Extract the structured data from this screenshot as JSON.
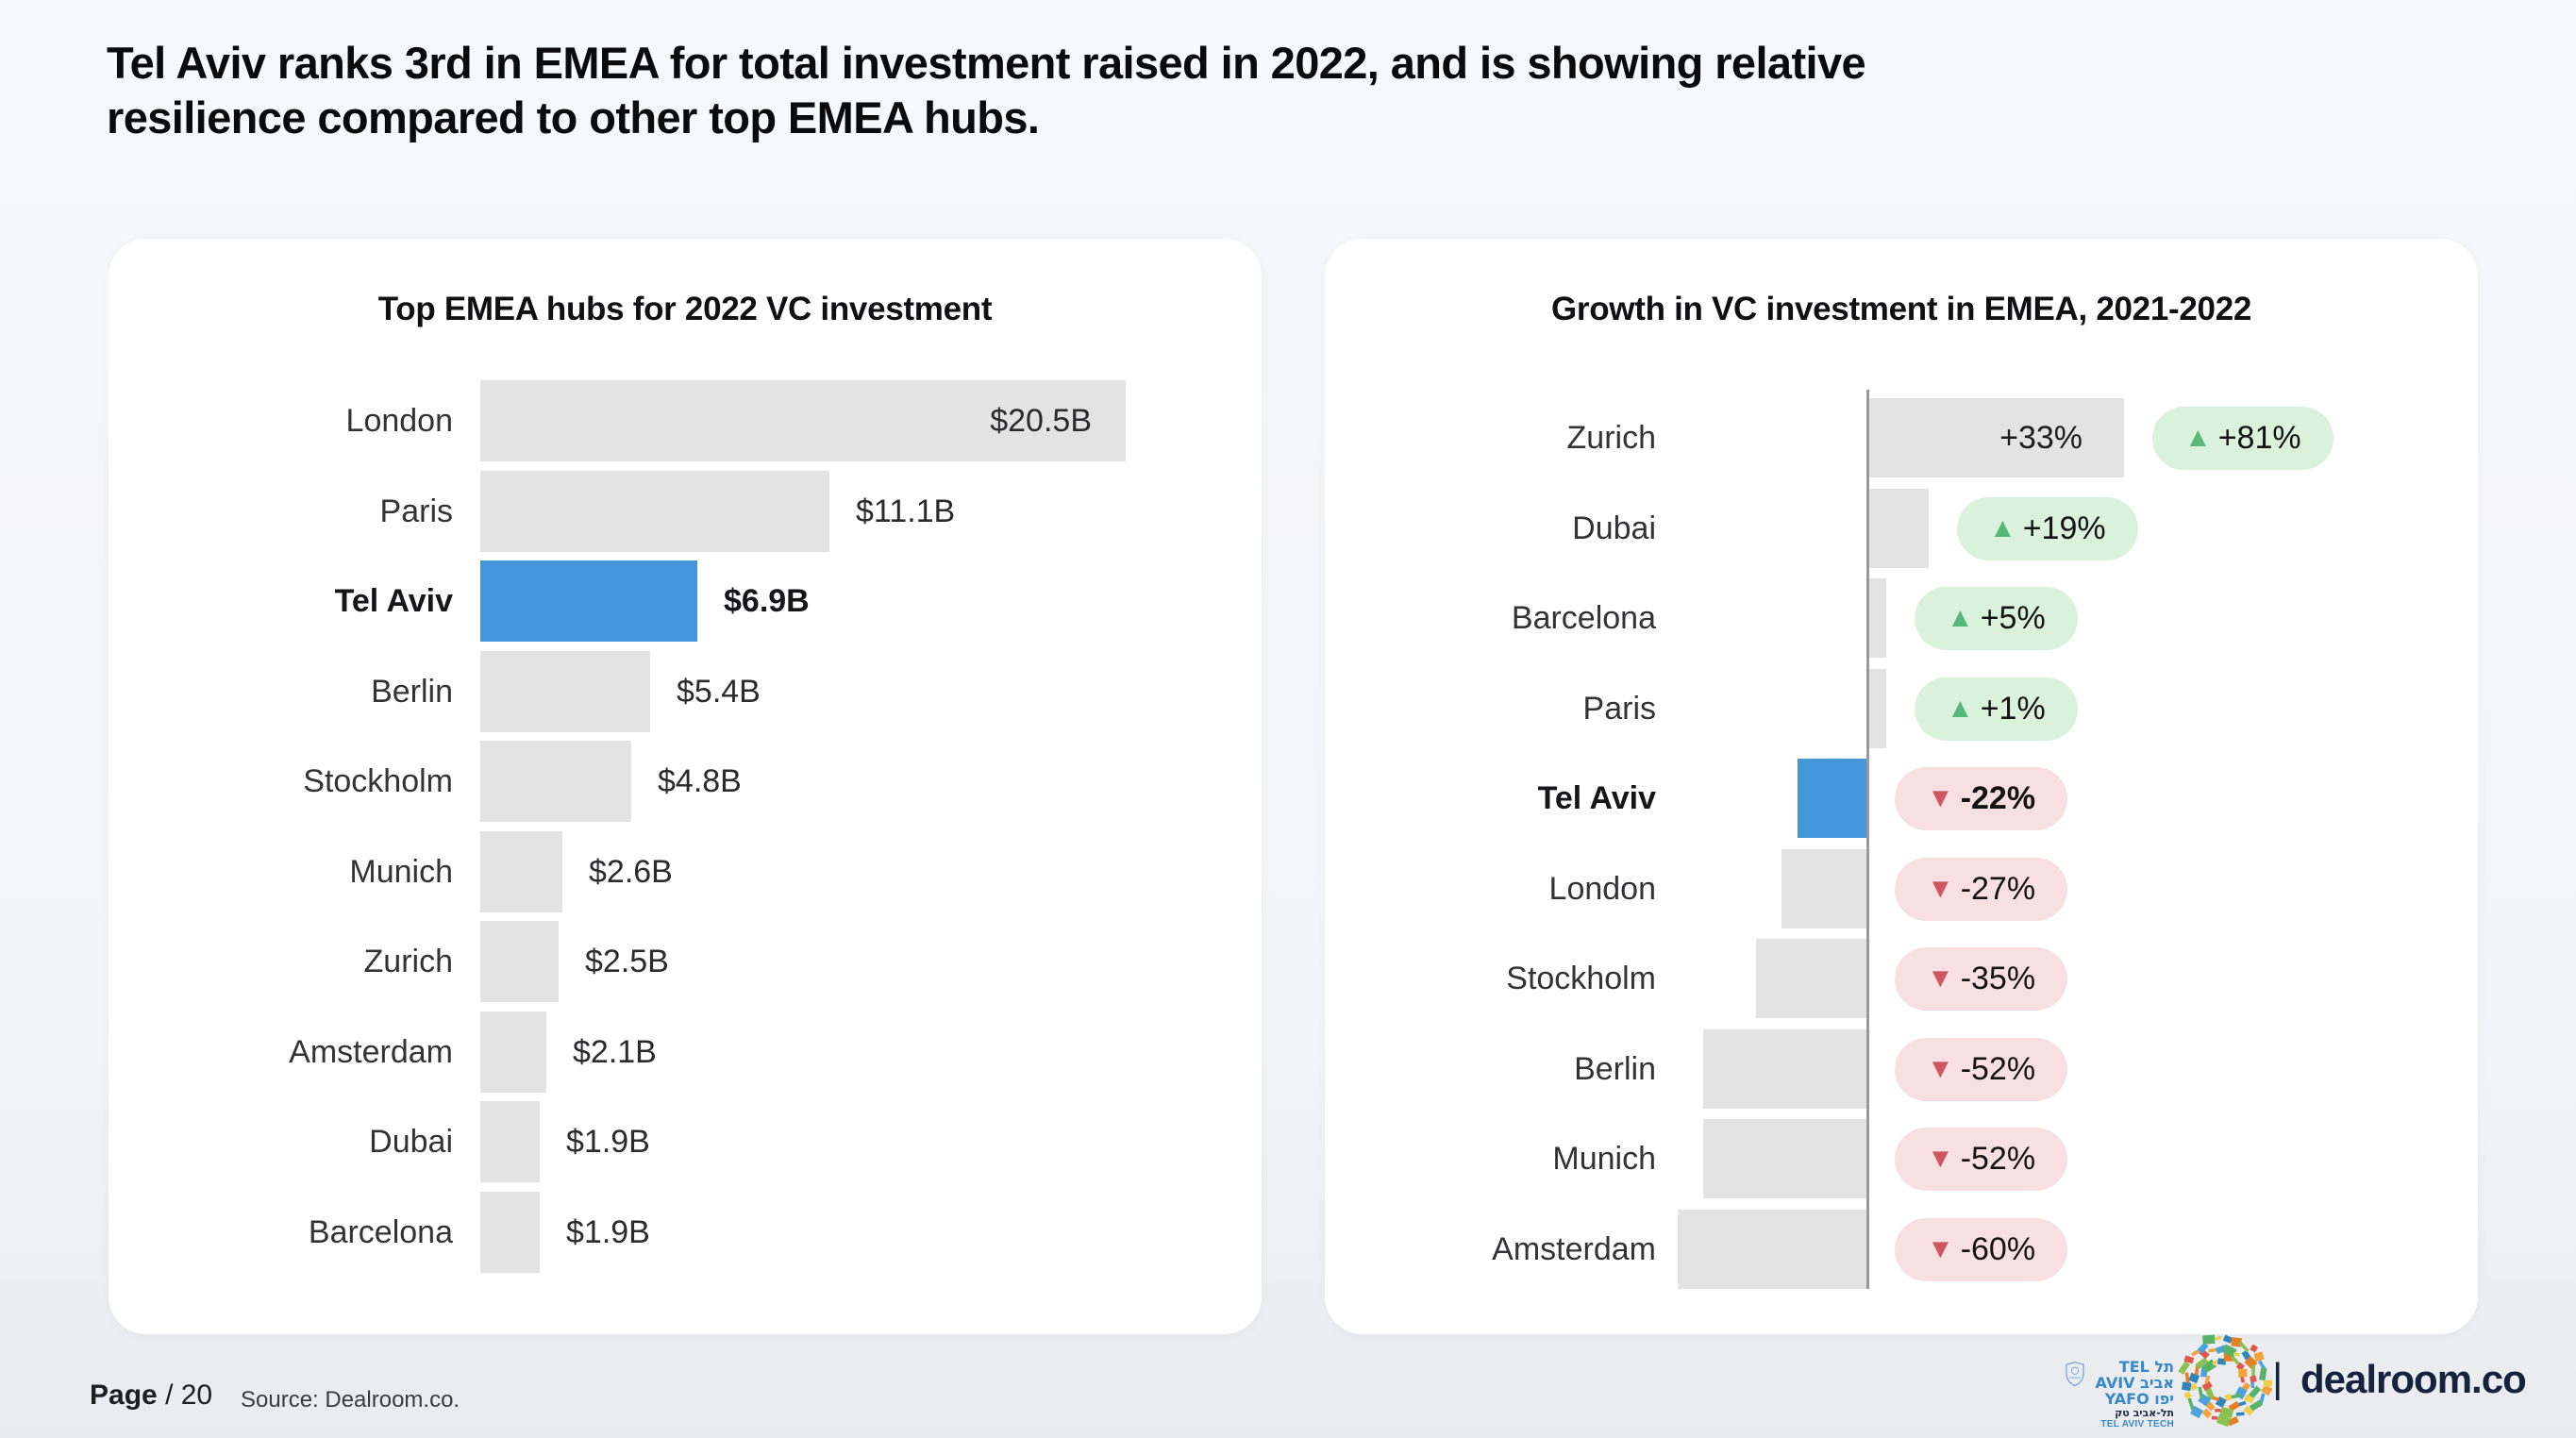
{
  "page": {
    "title_line1": "Tel Aviv ranks 3rd in EMEA for total investment raised in 2022, and is showing relative",
    "title_line2": "resilience compared to other top EMEA hubs.",
    "footer": {
      "page_word": "Page",
      "page_rest": "/ 20",
      "source": "Source: Dealroom.co."
    },
    "logos": {
      "telaviv_lines": [
        "TEL תל",
        "AVIV אביב",
        "YAFO יפו",
        "תל-אביב טק",
        "TEL AVIV TECH"
      ],
      "separator": "|",
      "dealroom": "dealroom.co"
    },
    "colors": {
      "highlight_blue": "#4497db",
      "bar_gray": "#e3e3e3",
      "pill_green_bg": "#daf1dc",
      "pill_green_triangle": "#57b879",
      "pill_red_bg": "#f8dfe1",
      "pill_red_triangle": "#cf5661"
    }
  },
  "chart_data": [
    {
      "type": "bar",
      "orientation": "horizontal",
      "title": "Top EMEA hubs for 2022 VC investment",
      "unit": "USD billions",
      "categories": [
        "London",
        "Paris",
        "Tel Aviv",
        "Berlin",
        "Stockholm",
        "Munich",
        "Zurich",
        "Amsterdam",
        "Dubai",
        "Barcelona"
      ],
      "values": [
        20.5,
        11.1,
        6.9,
        5.4,
        4.8,
        2.6,
        2.5,
        2.1,
        1.9,
        1.9
      ],
      "value_labels": [
        "$20.5B",
        "$11.1B",
        "$6.9B",
        "$5.4B",
        "$4.8B",
        "$2.6B",
        "$2.5B",
        "$2.1B",
        "$1.9B",
        "$1.9B"
      ],
      "highlight_category": "Tel Aviv",
      "layout": {
        "first_label_inside_bar": true,
        "xlim": [
          0,
          21
        ],
        "grid": false,
        "legend": "none"
      }
    },
    {
      "type": "bar",
      "orientation": "horizontal",
      "title": "Growth in VC investment in EMEA, 2021-2022",
      "unit": "percent growth",
      "categories": [
        "Zurich",
        "Dubai",
        "Barcelona",
        "Paris",
        "Tel Aviv",
        "London",
        "Stockholm",
        "Berlin",
        "Munich",
        "Amsterdam"
      ],
      "values": [
        81,
        19,
        5,
        1,
        -22,
        -27,
        -35,
        -52,
        -52,
        -60
      ],
      "badges": [
        {
          "text": "+81%",
          "dir": "up"
        },
        {
          "text": "+19%",
          "dir": "up"
        },
        {
          "text": "+5%",
          "dir": "up"
        },
        {
          "text": "+1%",
          "dir": "up"
        },
        {
          "text": "-22%",
          "dir": "down"
        },
        {
          "text": "-27%",
          "dir": "down"
        },
        {
          "text": "-35%",
          "dir": "down"
        },
        {
          "text": "-52%",
          "dir": "down"
        },
        {
          "text": "-52%",
          "dir": "down"
        },
        {
          "text": "-60%",
          "dir": "down"
        }
      ],
      "inline_bar_label": {
        "category": "Zurich",
        "text": "+33%"
      },
      "highlight_category": "Tel Aviv",
      "layout": {
        "zero_axis_line": true,
        "grid": false,
        "legend": "none"
      }
    }
  ]
}
